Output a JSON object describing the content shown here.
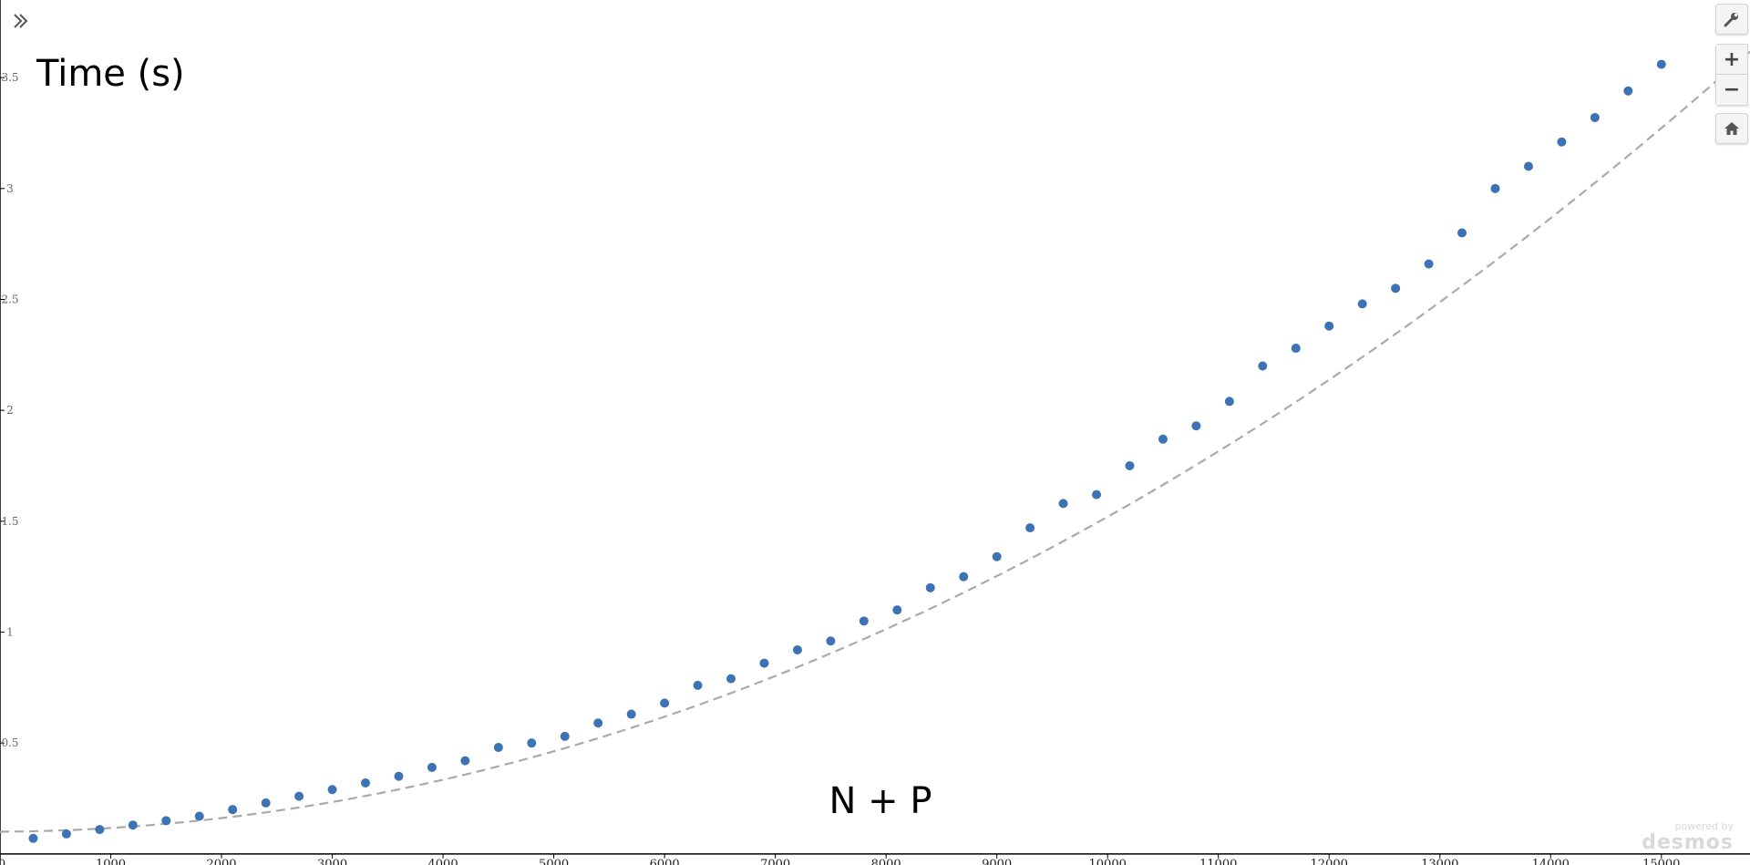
{
  "chart_data": {
    "type": "scatter",
    "title": "",
    "xlabel": "N + P",
    "ylabel": "Time (s)",
    "xlim": [
      0,
      15800
    ],
    "ylim": [
      -0.05,
      3.85
    ],
    "x_ticks": [
      1000,
      2000,
      3000,
      4000,
      5000,
      6000,
      7000,
      8000,
      9000,
      10000,
      11000,
      12000,
      13000,
      14000,
      15000
    ],
    "x_tick_labels": [
      "1000",
      "2000",
      "3000",
      "4000",
      "5000",
      "6000",
      "7000",
      "8000",
      "9000",
      "10000",
      "11000",
      "12000",
      "13000",
      "14000",
      "15000"
    ],
    "y_ticks": [
      0.5,
      1,
      1.5,
      2,
      2.5,
      3,
      3.5
    ],
    "y_tick_labels": [
      "0.5",
      "1",
      "1.5",
      "2",
      "2.5",
      "3",
      "3.5"
    ],
    "origin_label": "0",
    "grid": false,
    "series": [
      {
        "x": [
          300,
          600,
          900,
          1200,
          1500,
          1800,
          2100,
          2400,
          2700,
          3000,
          3300,
          3600,
          3900,
          4200,
          4500,
          4800,
          5100,
          5400,
          5700,
          6000,
          6300,
          6600,
          6900,
          7200,
          7500,
          7800,
          8100,
          8400,
          8700,
          9000,
          9300,
          9600,
          9900,
          10200,
          10500,
          10800,
          11100,
          11400,
          11700,
          12000,
          12300,
          12600,
          12900,
          13200,
          13500,
          13800,
          14100,
          14400,
          14700,
          15000
        ],
        "y": [
          0.07,
          0.09,
          0.11,
          0.13,
          0.15,
          0.17,
          0.2,
          0.23,
          0.26,
          0.29,
          0.32,
          0.35,
          0.39,
          0.42,
          0.48,
          0.5,
          0.53,
          0.59,
          0.63,
          0.68,
          0.76,
          0.79,
          0.86,
          0.92,
          0.96,
          1.05,
          1.1,
          1.2,
          1.25,
          1.34,
          1.47,
          1.58,
          1.62,
          1.75,
          1.87,
          1.93,
          2.04,
          2.2,
          2.28,
          2.38,
          2.48,
          2.55,
          2.66,
          2.8,
          3,
          3.1,
          3.21,
          3.32,
          3.44,
          3.56
        ],
        "color": "#3d72b4"
      }
    ],
    "trendline": {
      "type": "quadratic",
      "coefficients": [
        0.1,
        3e-06,
        1.39e-08
      ],
      "style": "dashed",
      "color": "#aaaaaa"
    }
  },
  "ui": {
    "expand_icon": "double-chevron-right-icon",
    "wrench_icon": "wrench-icon",
    "zoom_in_label": "+",
    "zoom_out_label": "−",
    "home_icon": "home-icon",
    "watermark_small": "powered by",
    "watermark_big": "desmos"
  }
}
